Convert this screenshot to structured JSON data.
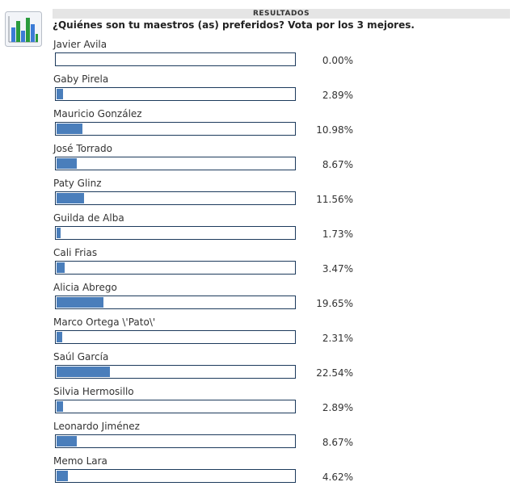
{
  "poll": {
    "header": "RESULTADOS",
    "question": "¿Quiénes son tu maestros (as) preferidos? Vota por los 3 mejores.",
    "icon": "bar-chart-icon",
    "colors": {
      "bar_fill": "#4a7ebb",
      "bar_border": "#1c3a5c",
      "header_bg": "#e5e5e5"
    },
    "options": [
      {
        "name": "Javier Avila",
        "percent_text": "0.00%",
        "percent": 0.0
      },
      {
        "name": "Gaby Pirela",
        "percent_text": "2.89%",
        "percent": 2.89
      },
      {
        "name": "Mauricio González",
        "percent_text": "10.98%",
        "percent": 10.98
      },
      {
        "name": "José Torrado",
        "percent_text": "8.67%",
        "percent": 8.67
      },
      {
        "name": "Paty Glinz",
        "percent_text": "11.56%",
        "percent": 11.56
      },
      {
        "name": "Guilda de Alba",
        "percent_text": "1.73%",
        "percent": 1.73
      },
      {
        "name": "Cali Frias",
        "percent_text": "3.47%",
        "percent": 3.47
      },
      {
        "name": "Alicia Abrego",
        "percent_text": "19.65%",
        "percent": 19.65
      },
      {
        "name": "Marco Ortega \\'Pato\\'",
        "percent_text": "2.31%",
        "percent": 2.31
      },
      {
        "name": "Saúl García",
        "percent_text": "22.54%",
        "percent": 22.54
      },
      {
        "name": "Silvia Hermosillo",
        "percent_text": "2.89%",
        "percent": 2.89
      },
      {
        "name": "Leonardo Jiménez",
        "percent_text": "8.67%",
        "percent": 8.67
      },
      {
        "name": "Memo Lara",
        "percent_text": "4.62%",
        "percent": 4.62
      }
    ]
  }
}
